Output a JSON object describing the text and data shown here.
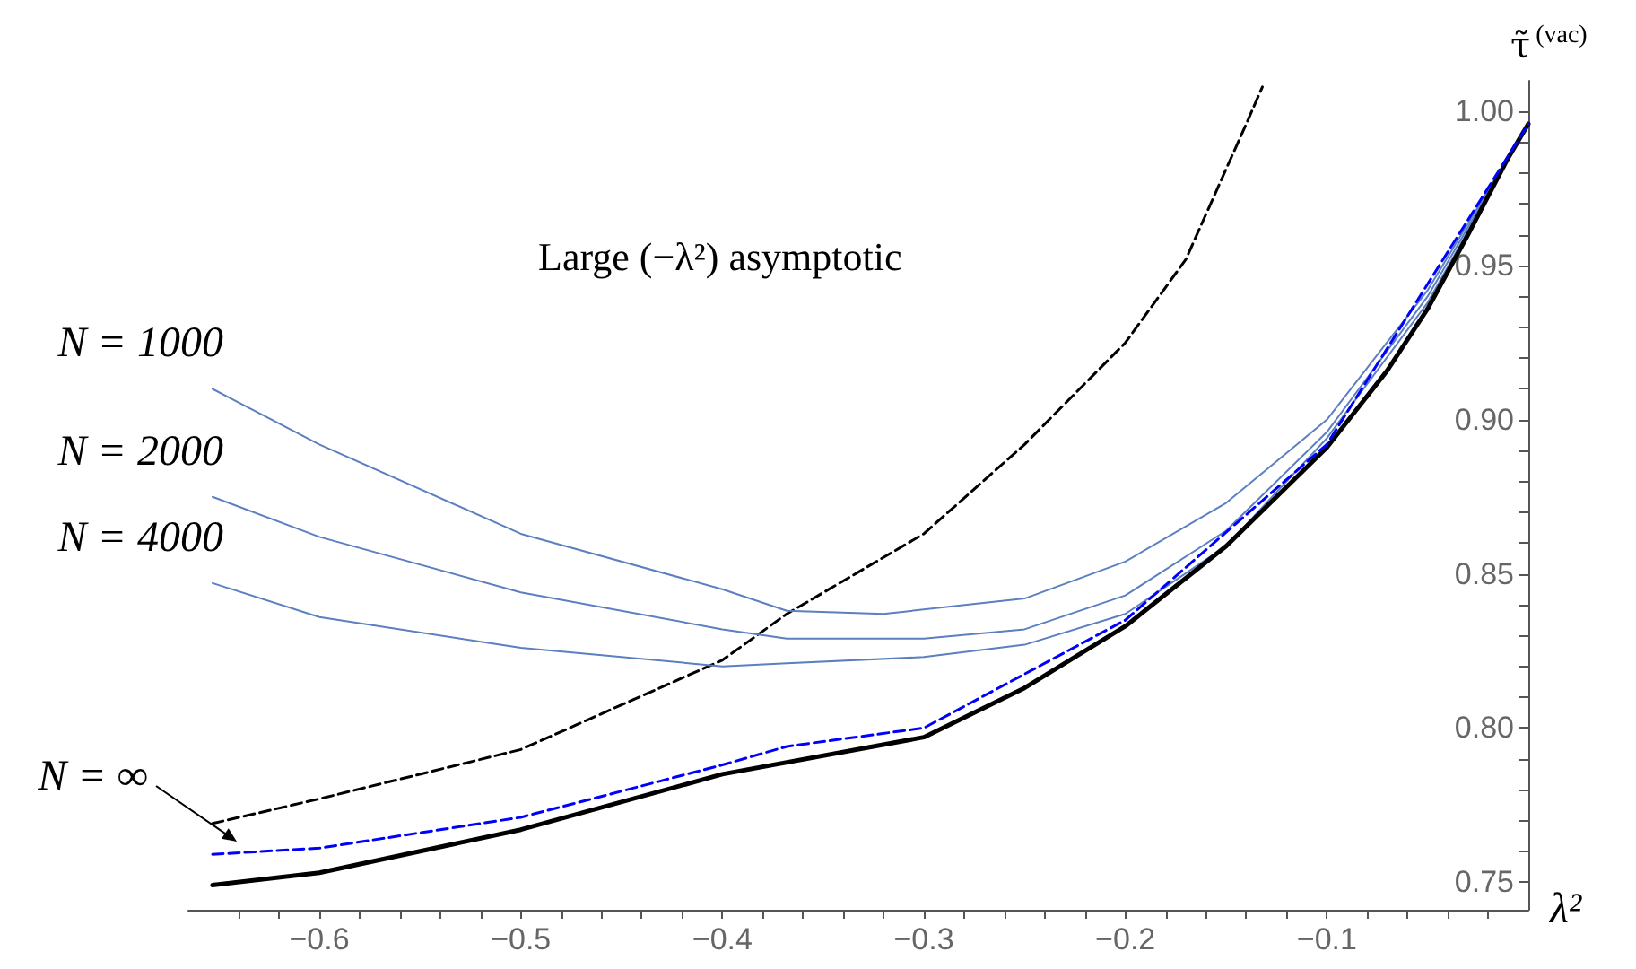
{
  "chart_data": {
    "type": "line",
    "xlabel": "λ²",
    "ylabel": "τ̃$^{(vac)}$",
    "annotations": [
      "Large (−λ²) asymptotic"
    ],
    "xlim": [
      -0.665,
      0
    ],
    "ylim": [
      0.741,
      1.01
    ],
    "xticks": [
      -0.6,
      -0.5,
      -0.4,
      -0.3,
      -0.2,
      -0.1,
      {
        "value": -0.64,
        "label": null
      },
      {
        "value": -0.62,
        "label": null
      },
      {
        "value": -0.58,
        "label": null
      },
      {
        "value": -0.56,
        "label": null
      },
      {
        "value": -0.54,
        "label": null
      },
      {
        "value": -0.52,
        "label": null
      },
      {
        "value": -0.48,
        "label": null
      },
      {
        "value": -0.46,
        "label": null
      },
      {
        "value": -0.44,
        "label": null
      },
      {
        "value": -0.42,
        "label": null
      },
      {
        "value": -0.38,
        "label": null
      },
      {
        "value": -0.36,
        "label": null
      },
      {
        "value": -0.34,
        "label": null
      },
      {
        "value": -0.32,
        "label": null
      },
      {
        "value": -0.28,
        "label": null
      },
      {
        "value": -0.26,
        "label": null
      },
      {
        "value": -0.24,
        "label": null
      },
      {
        "value": -0.22,
        "label": null
      },
      {
        "value": -0.18,
        "label": null
      },
      {
        "value": -0.16,
        "label": null
      },
      {
        "value": -0.14,
        "label": null
      },
      {
        "value": -0.12,
        "label": null
      },
      {
        "value": -0.08,
        "label": null
      },
      {
        "value": -0.06,
        "label": null
      },
      {
        "value": -0.04,
        "label": null
      },
      {
        "value": -0.02,
        "label": null
      }
    ],
    "yticks": [
      {
        "value": 0.75,
        "label": "0.75"
      },
      {
        "value": 0.8,
        "label": "0.80"
      },
      {
        "value": 0.85,
        "label": "0.85"
      },
      {
        "value": 0.9,
        "label": "0.90"
      },
      {
        "value": 0.95,
        "label": "0.95"
      },
      {
        "value": 1.0,
        "label": "1.00"
      },
      {
        "value": 0.76,
        "label": null
      },
      {
        "value": 0.77,
        "label": null
      },
      {
        "value": 0.78,
        "label": null
      },
      {
        "value": 0.79,
        "label": null
      },
      {
        "value": 0.81,
        "label": null
      },
      {
        "value": 0.82,
        "label": null
      },
      {
        "value": 0.83,
        "label": null
      },
      {
        "value": 0.84,
        "label": null
      },
      {
        "value": 0.86,
        "label": null
      },
      {
        "value": 0.87,
        "label": null
      },
      {
        "value": 0.88,
        "label": null
      },
      {
        "value": 0.89,
        "label": null
      },
      {
        "value": 0.91,
        "label": null
      },
      {
        "value": 0.92,
        "label": null
      },
      {
        "value": 0.93,
        "label": null
      },
      {
        "value": 0.94,
        "label": null
      },
      {
        "value": 0.96,
        "label": null
      },
      {
        "value": 0.97,
        "label": null
      },
      {
        "value": 0.98,
        "label": null
      },
      {
        "value": 0.99,
        "label": null
      }
    ],
    "grid": false,
    "legend": false,
    "marker": "none",
    "series": [
      {
        "color": "#000000",
        "line_style": "dashed",
        "x": [
          -0.653,
          -0.6,
          -0.5,
          -0.4,
          -0.368,
          -0.3,
          -0.25,
          -0.2,
          -0.17,
          -0.14,
          -0.132
        ],
        "values": [
          0.769,
          0.777,
          0.793,
          0.822,
          0.837,
          0.863,
          0.892,
          0.925,
          0.952,
          0.996,
          1.008
        ]
      },
      {
        "name": "N = 1000",
        "color": "#5b7fc0",
        "line_style": "solid",
        "x": [
          -0.653,
          -0.6,
          -0.5,
          -0.4,
          -0.368,
          -0.32,
          -0.25,
          -0.2,
          -0.15,
          -0.1,
          -0.05,
          0
        ],
        "values": [
          0.91,
          0.892,
          0.863,
          0.845,
          0.838,
          0.837,
          0.842,
          0.854,
          0.873,
          0.9,
          0.942,
          0.996
        ]
      },
      {
        "name": "N = 2000",
        "color": "#5b7fc0",
        "line_style": "solid",
        "x": [
          -0.653,
          -0.6,
          -0.5,
          -0.4,
          -0.368,
          -0.3,
          -0.25,
          -0.2,
          -0.15,
          -0.1,
          -0.05,
          0
        ],
        "values": [
          0.875,
          0.862,
          0.844,
          0.832,
          0.829,
          0.829,
          0.832,
          0.843,
          0.864,
          0.896,
          0.94,
          0.996
        ]
      },
      {
        "name": "N = 4000",
        "color": "#5b7fc0",
        "line_style": "solid",
        "x": [
          -0.653,
          -0.6,
          -0.5,
          -0.4,
          -0.368,
          -0.3,
          -0.25,
          -0.2,
          -0.15,
          -0.1,
          -0.05,
          0
        ],
        "values": [
          0.847,
          0.836,
          0.826,
          0.82,
          0.821,
          0.823,
          0.827,
          0.837,
          0.859,
          0.894,
          0.938,
          0.996
        ]
      },
      {
        "color": "#000000",
        "line_style": "solid",
        "x": [
          -0.653,
          -0.6,
          -0.5,
          -0.4,
          -0.3,
          -0.25,
          -0.2,
          -0.15,
          -0.1,
          -0.07,
          -0.05,
          -0.03,
          -0.01,
          0
        ],
        "values": [
          0.749,
          0.753,
          0.767,
          0.785,
          0.797,
          0.813,
          0.833,
          0.859,
          0.891,
          0.916,
          0.936,
          0.96,
          0.985,
          0.996
        ]
      },
      {
        "name": "N = ∞",
        "color": "#0000ff",
        "line_style": "dashed",
        "x": [
          -0.653,
          -0.6,
          -0.5,
          -0.4,
          -0.368,
          -0.3,
          -0.2,
          -0.1,
          0
        ],
        "values": [
          0.759,
          0.761,
          0.771,
          0.788,
          0.794,
          0.8,
          0.835,
          0.892,
          0.996
        ]
      }
    ]
  }
}
